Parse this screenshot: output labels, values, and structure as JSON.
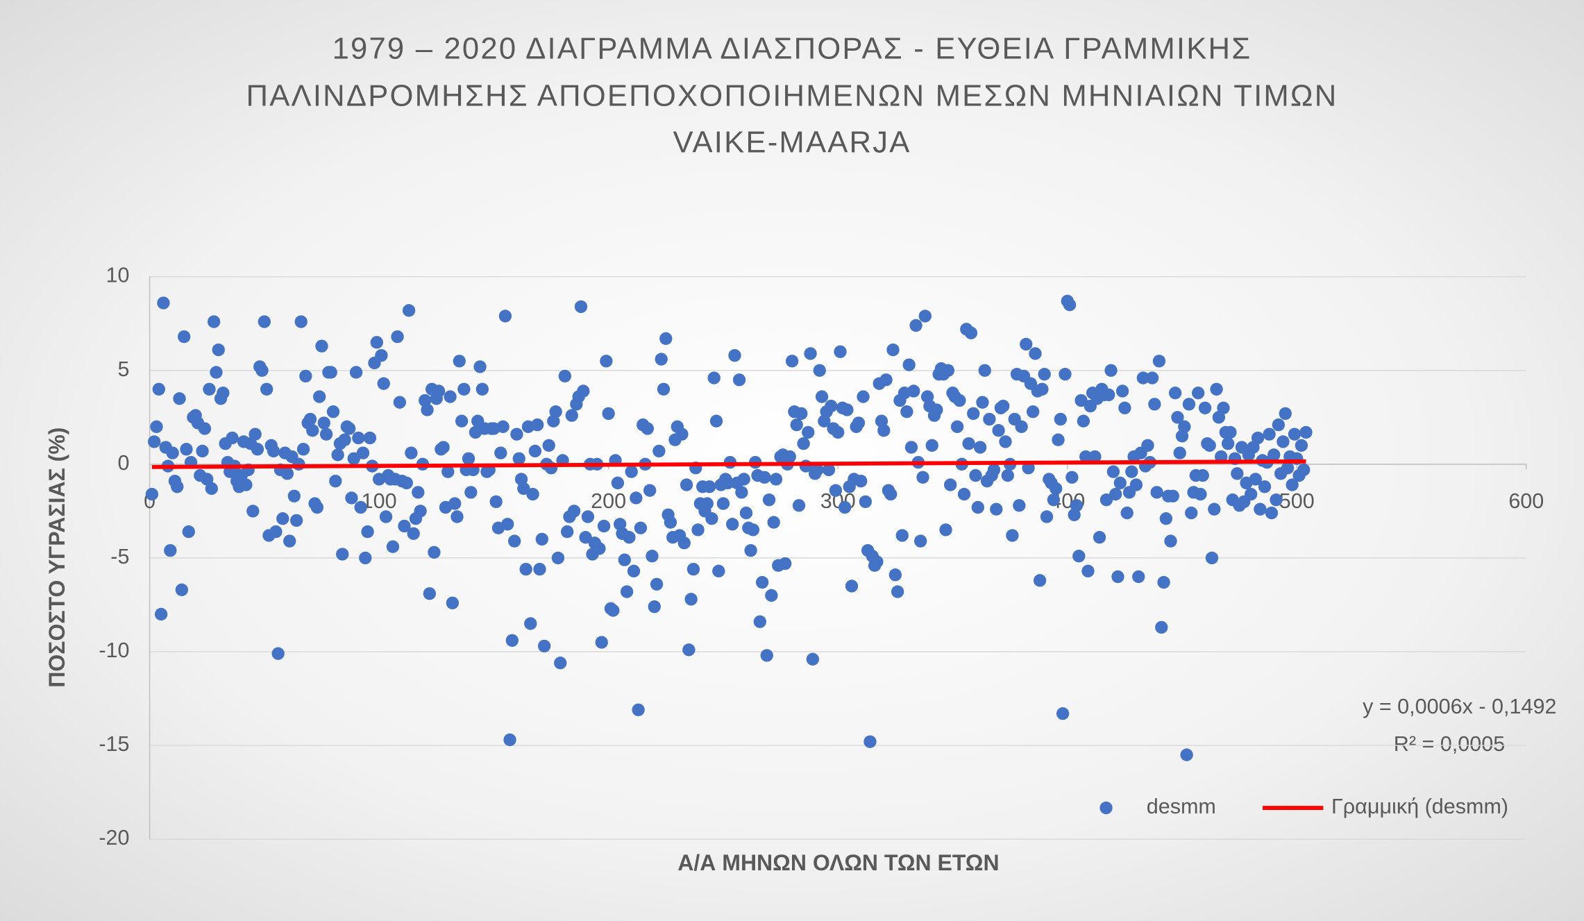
{
  "chart_data": {
    "type": "scatter",
    "title": [
      "1979 – 2020 ΔΙΑΓΡΑΜΜΑ ΔΙΑΣΠΟΡΑΣ - ΕΥΘΕΙΑ ΓΡΑΜΜΙΚΗΣ",
      "ΠΑΛΙΝΔΡΟΜΗΣΗΣ ΑΠΟΕΠΟΧΟΠΟΙΗΜΕΝΩΝ ΜΕΣΩΝ ΜΗΝΙΑΙΩΝ ΤΙΜΩΝ",
      "VAIKE-MAARJA"
    ],
    "x_label": "Α/Α ΜΗΝΩΝ ΟΛΩΝ ΤΩΝ ΕΤΩΝ",
    "y_label": "ΠΟΣΟΣΤΟ ΥΓΡΑΣΙΑΣ (%)",
    "xlim": [
      0,
      600
    ],
    "xticks": [
      0,
      100,
      200,
      300,
      400,
      500,
      600
    ],
    "ylim": [
      -20,
      10
    ],
    "yticks": [
      -20,
      -15,
      -10,
      -5,
      0,
      5,
      10
    ],
    "grid": true,
    "legend": "bottom-right",
    "annotations": [
      "y = 0,0006x - 0,1492",
      "R² = 0,0005"
    ],
    "series": [
      {
        "name": "desmm",
        "color": "#4472c4",
        "x": [
          1,
          2,
          3,
          4,
          5,
          6,
          7,
          8,
          9,
          10,
          11,
          12,
          13,
          14,
          15,
          16,
          17,
          18,
          19,
          20,
          21,
          22,
          23,
          24,
          25,
          26,
          27,
          28,
          29,
          30,
          31,
          32,
          33,
          34,
          35,
          36,
          37,
          38,
          39,
          40,
          41,
          42,
          43,
          44,
          45,
          46,
          47,
          48,
          49,
          50,
          51,
          52,
          53,
          54,
          55,
          56,
          57,
          58,
          59,
          60,
          61,
          62,
          63,
          64,
          65,
          66,
          67,
          68,
          69,
          70,
          71,
          72,
          73,
          74,
          75,
          76,
          77,
          78,
          79,
          80,
          81,
          82,
          83,
          84,
          85,
          86,
          87,
          88,
          89,
          90,
          91,
          92,
          93,
          94,
          95,
          96,
          97,
          98,
          99,
          100,
          101,
          102,
          103,
          104,
          105,
          106,
          107,
          108,
          109,
          110,
          111,
          112,
          113,
          114,
          115,
          116,
          117,
          118,
          119,
          120,
          121,
          122,
          123,
          124,
          125,
          126,
          127,
          128,
          129,
          130,
          131,
          132,
          133,
          134,
          135,
          136,
          137,
          138,
          139,
          140,
          141,
          142,
          143,
          144,
          145,
          146,
          147,
          148,
          149,
          150,
          151,
          152,
          153,
          154,
          155,
          156,
          157,
          158,
          159,
          160,
          161,
          162,
          163,
          164,
          165,
          166,
          167,
          168,
          169,
          170,
          171,
          172,
          173,
          174,
          175,
          176,
          177,
          178,
          179,
          180,
          181,
          182,
          183,
          184,
          185,
          186,
          187,
          188,
          189,
          190,
          191,
          192,
          193,
          194,
          195,
          196,
          197,
          198,
          199,
          200,
          201,
          202,
          203,
          204,
          205,
          206,
          207,
          208,
          209,
          210,
          211,
          212,
          213,
          214,
          215,
          216,
          217,
          218,
          219,
          220,
          221,
          222,
          223,
          224,
          225,
          226,
          227,
          228,
          229,
          230,
          231,
          232,
          233,
          234,
          235,
          236,
          237,
          238,
          239,
          240,
          241,
          242,
          243,
          244,
          245,
          246,
          247,
          248,
          249,
          250,
          251,
          252,
          253,
          254,
          255,
          256,
          257,
          258,
          259,
          260,
          261,
          262,
          263,
          264,
          265,
          266,
          267,
          268,
          269,
          270,
          271,
          272,
          273,
          274,
          275,
          276,
          277,
          278,
          279,
          280,
          281,
          282,
          283,
          284,
          285,
          286,
          287,
          288,
          289,
          290,
          291,
          292,
          293,
          294,
          295,
          296,
          297,
          298,
          299,
          300,
          301,
          302,
          303,
          304,
          305,
          306,
          307,
          308,
          309,
          310,
          311,
          312,
          313,
          314,
          315,
          316,
          317,
          318,
          319,
          320,
          321,
          322,
          323,
          324,
          325,
          326,
          327,
          328,
          329,
          330,
          331,
          332,
          333,
          334,
          335,
          336,
          337,
          338,
          339,
          340,
          341,
          342,
          343,
          344,
          345,
          346,
          347,
          348,
          349,
          350,
          351,
          352,
          353,
          354,
          355,
          356,
          357,
          358,
          359,
          360,
          361,
          362,
          363,
          364,
          365,
          366,
          367,
          368,
          369,
          370,
          371,
          372,
          373,
          374,
          375,
          376,
          377,
          378,
          379,
          380,
          381,
          382,
          383,
          384,
          385,
          386,
          387,
          388,
          389,
          390,
          391,
          392,
          393,
          394,
          395,
          396,
          397,
          398,
          399,
          400,
          401,
          402,
          403,
          404,
          405,
          406,
          407,
          408,
          409,
          410,
          411,
          412,
          413,
          414,
          415,
          416,
          417,
          418,
          419,
          420,
          421,
          422,
          423,
          424,
          425,
          426,
          427,
          428,
          429,
          430,
          431,
          432,
          433,
          434,
          435,
          436,
          437,
          438,
          439,
          440,
          441,
          442,
          443,
          444,
          445,
          446,
          447,
          448,
          449,
          450,
          451,
          452,
          453,
          454,
          455,
          456,
          457,
          458,
          459,
          460,
          461,
          462,
          463,
          464,
          465,
          466,
          467,
          468,
          469,
          470,
          471,
          472,
          473,
          474,
          475,
          476,
          477,
          478,
          479,
          480,
          481,
          482,
          483,
          484,
          485,
          486,
          487,
          488,
          489,
          490,
          491,
          492,
          493,
          494,
          495,
          496,
          497,
          498,
          499,
          500,
          501,
          502,
          503,
          504
        ],
        "values": [
          -1.6,
          1.2,
          2.0,
          4.0,
          -8.0,
          8.6,
          0.9,
          -0.1,
          -4.6,
          0.6,
          -0.9,
          -1.2,
          3.5,
          -6.7,
          6.8,
          0.8,
          -3.6,
          0.1,
          2.5,
          2.6,
          2.2,
          -0.6,
          0.7,
          1.9,
          -0.8,
          4.0,
          -1.3,
          7.6,
          4.9,
          6.1,
          3.5,
          3.8,
          1.1,
          0.1,
          -0.4,
          1.4,
          -0.1,
          -0.9,
          -1.2,
          -0.6,
          1.2,
          -1.1,
          -0.3,
          1.1,
          -2.5,
          1.6,
          0.8,
          5.2,
          5.0,
          7.6,
          4.0,
          -3.8,
          1.0,
          0.7,
          -3.6,
          -10.1,
          -0.3,
          -2.9,
          0.6,
          -0.5,
          -4.1,
          0.4,
          -1.7,
          -3.0,
          0.0,
          7.6,
          0.8,
          4.7,
          2.2,
          2.4,
          1.8,
          -2.1,
          -2.3,
          3.6,
          6.3,
          2.2,
          1.6,
          4.9,
          4.9,
          2.8,
          -0.9,
          0.5,
          1.1,
          -4.8,
          1.3,
          2.0,
          1.9,
          -1.8,
          0.3,
          4.9,
          1.4,
          -2.3,
          0.6,
          -5.0,
          -3.6,
          1.4,
          -0.1,
          5.4,
          6.5,
          -0.8,
          5.8,
          4.3,
          -2.8,
          -0.6,
          -0.8,
          -4.4,
          -0.8,
          6.8,
          3.3,
          -0.9,
          -3.3,
          -1.0,
          8.2,
          0.6,
          -3.7,
          -2.9,
          -1.5,
          -2.5,
          0.0,
          3.4,
          2.9,
          -6.9,
          4.0,
          -4.7,
          3.5,
          3.9,
          0.8,
          0.9,
          -2.3,
          -0.4,
          3.6,
          -7.4,
          -2.1,
          -2.8,
          5.5,
          2.3,
          4.0,
          -0.3,
          0.3,
          -1.5,
          -0.3,
          1.7,
          2.3,
          5.2,
          4.0,
          1.9,
          -0.4,
          -0.3,
          1.9,
          1.9,
          -2.0,
          -3.4,
          0.6,
          2.0,
          7.9,
          -3.2,
          -14.7,
          -9.4,
          -4.1,
          1.6,
          0.3,
          -0.8,
          -1.3,
          -5.6,
          2.0,
          -8.5,
          -1.6,
          0.7,
          2.1,
          -5.6,
          -4.0,
          -9.7,
          0.0,
          1.0,
          -0.2,
          2.3,
          2.8,
          -5.0,
          -10.6,
          0.2,
          4.7,
          -3.6,
          -2.8,
          2.6,
          -2.5,
          3.2,
          3.6,
          8.4,
          3.9,
          -3.9,
          -2.8,
          0.0,
          -4.8,
          -4.2,
          0.0,
          -4.5,
          -9.5,
          -3.3,
          5.5,
          2.7,
          -7.7,
          -7.8,
          0.2,
          -1.0,
          -3.2,
          -3.7,
          -5.1,
          -6.8,
          -3.9,
          -0.4,
          -5.7,
          -1.8,
          -13.1,
          -3.4,
          2.1,
          0.0,
          1.9,
          -1.4,
          -4.9,
          -7.6,
          -6.4,
          0.7,
          5.6,
          4.0,
          6.7,
          -2.7,
          -3.1,
          -3.9,
          1.3,
          2.0,
          -3.8,
          1.6,
          -4.2,
          -1.1,
          -9.9,
          -7.2,
          -5.6,
          -0.2,
          -3.5,
          -2.1,
          -1.2,
          -2.5,
          -2.1,
          -1.2,
          -2.9,
          4.6,
          2.3,
          -5.7,
          -1.1,
          -2.1,
          -0.8,
          -1.0,
          0.1,
          -3.2,
          5.8,
          -1.0,
          4.5,
          -1.5,
          -0.8,
          -2.6,
          -3.4,
          -4.6,
          -3.5,
          0.1,
          -0.6,
          -8.4,
          -6.3,
          -0.7,
          -10.2,
          -1.9,
          -7.0,
          -3.1,
          -0.8,
          -5.4,
          0.4,
          0.5,
          -5.3,
          0.0,
          0.4,
          5.5,
          2.8,
          2.1,
          -2.2,
          2.7,
          1.1,
          -0.1,
          1.7,
          5.9,
          -10.4,
          -0.5,
          -0.3,
          5.0,
          3.6,
          2.3,
          2.8,
          -0.3,
          3.1,
          1.9,
          -1.4,
          1.7,
          6.0,
          3.0,
          -2.3,
          2.9,
          -1.2,
          -6.5,
          -0.8,
          2.0,
          2.2,
          -0.9,
          3.6,
          -2.0,
          -4.6,
          -14.8,
          -4.9,
          -5.4,
          -5.2,
          4.3,
          2.3,
          1.8,
          4.5,
          -1.4,
          -1.6,
          6.1,
          -5.9,
          -6.8,
          3.4,
          -3.8,
          3.8,
          2.8,
          5.3,
          0.9,
          3.9,
          7.4,
          0.1,
          -4.1,
          -0.7,
          7.9,
          3.6,
          3.1,
          1.0,
          2.6,
          2.9,
          4.8,
          5.1,
          4.8,
          -3.5,
          5.0,
          -1.1,
          3.8,
          3.6,
          2.0,
          3.4,
          0.0,
          -1.6,
          7.2,
          1.1,
          7.0,
          2.7,
          -0.6,
          -2.3,
          0.9,
          3.3,
          5.0,
          -0.9,
          2.4,
          -0.6,
          -0.3,
          -2.4,
          1.8,
          3.0,
          3.1,
          1.2,
          -0.6,
          0.0,
          -3.8,
          2.4,
          4.8,
          -2.2,
          2.0,
          4.7,
          6.4,
          -0.2,
          4.3,
          2.8,
          5.9,
          3.9,
          -6.2,
          4.0,
          4.8,
          -2.8,
          -0.8,
          -1.0,
          -1.9,
          -1.3,
          1.3,
          2.4,
          -13.3,
          4.8,
          8.7,
          8.5,
          -0.7,
          -2.7,
          -2.2,
          -4.9,
          3.4,
          2.3,
          0.4,
          -5.7,
          3.1,
          3.8,
          0.4,
          3.5,
          -3.9,
          4.0,
          3.7,
          -1.9,
          3.7,
          5.0,
          -0.4,
          -1.6,
          -6.0,
          -1.0,
          3.9,
          3.0,
          -2.6,
          -1.5,
          -0.4,
          0.4,
          -1.1,
          -6.0,
          0.6,
          4.6,
          -0.1,
          1.0,
          0.1,
          4.6,
          3.2,
          -1.5,
          5.5,
          -8.7,
          -6.3,
          -2.9,
          -1.7,
          -4.1,
          -1.7,
          3.8,
          2.5,
          0.6,
          1.5,
          2.0,
          -15.5,
          3.2,
          -2.6,
          -1.5,
          -0.6,
          3.8,
          -1.6,
          -0.6,
          3.0,
          1.1,
          1.0,
          -5.0,
          -2.4,
          4.0,
          2.5,
          0.4,
          3.0,
          1.7,
          1.1,
          1.7,
          -1.9,
          0.3,
          -0.5,
          -2.2,
          0.9,
          -2.0,
          -1.0,
          0.5,
          -1.6,
          0.9,
          -0.8,
          1.4,
          -2.4,
          0.2,
          -1.2,
          0.1,
          1.6,
          -2.6,
          0.5,
          -1.9,
          2.1,
          -0.5,
          1.2,
          2.7,
          -0.2,
          0.4,
          -1.1,
          1.6,
          0.3,
          -0.6,
          1.0,
          -0.3,
          1.7
        ]
      },
      {
        "name": "Γραμμική (desmm)",
        "color": "#ff0000",
        "x": [
          1,
          504
        ],
        "values": [
          -0.15,
          0.15
        ]
      }
    ]
  }
}
